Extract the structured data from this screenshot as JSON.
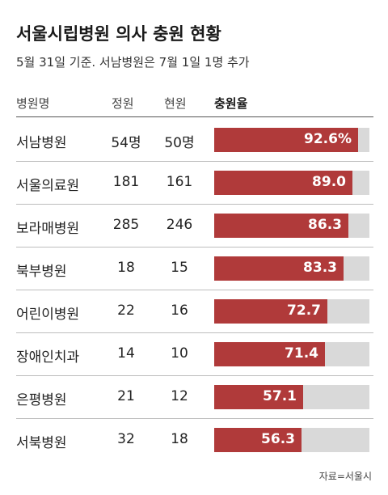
{
  "title": "서울시립병원 의사 충원 현황",
  "subtitle": "5월 31일 기준. 서남병원은 7월 1일 1명 추가",
  "headers": {
    "hospital": "병원명",
    "quota": "정원",
    "current": "현원",
    "rate": "충원율"
  },
  "source": "자료=서울시",
  "colors": {
    "bar": "#b03a3a",
    "track": "#d9d9d9"
  },
  "chart_data": {
    "type": "bar",
    "categories": [
      "서남병원",
      "서울의료원",
      "보라매병원",
      "북부병원",
      "어린이병원",
      "장애인치과",
      "은평병원",
      "서북병원"
    ],
    "quota": [
      "54명",
      "181",
      "285",
      "18",
      "22",
      "14",
      "21",
      "32"
    ],
    "current": [
      "50명",
      "161",
      "246",
      "15",
      "16",
      "10",
      "12",
      "18"
    ],
    "values": [
      92.6,
      89.0,
      86.3,
      83.3,
      72.7,
      71.4,
      57.1,
      56.3
    ],
    "value_labels": [
      "92.6%",
      "89.0",
      "86.3",
      "83.3",
      "72.7",
      "71.4",
      "57.1",
      "56.3"
    ],
    "xlim": [
      0,
      100
    ]
  }
}
